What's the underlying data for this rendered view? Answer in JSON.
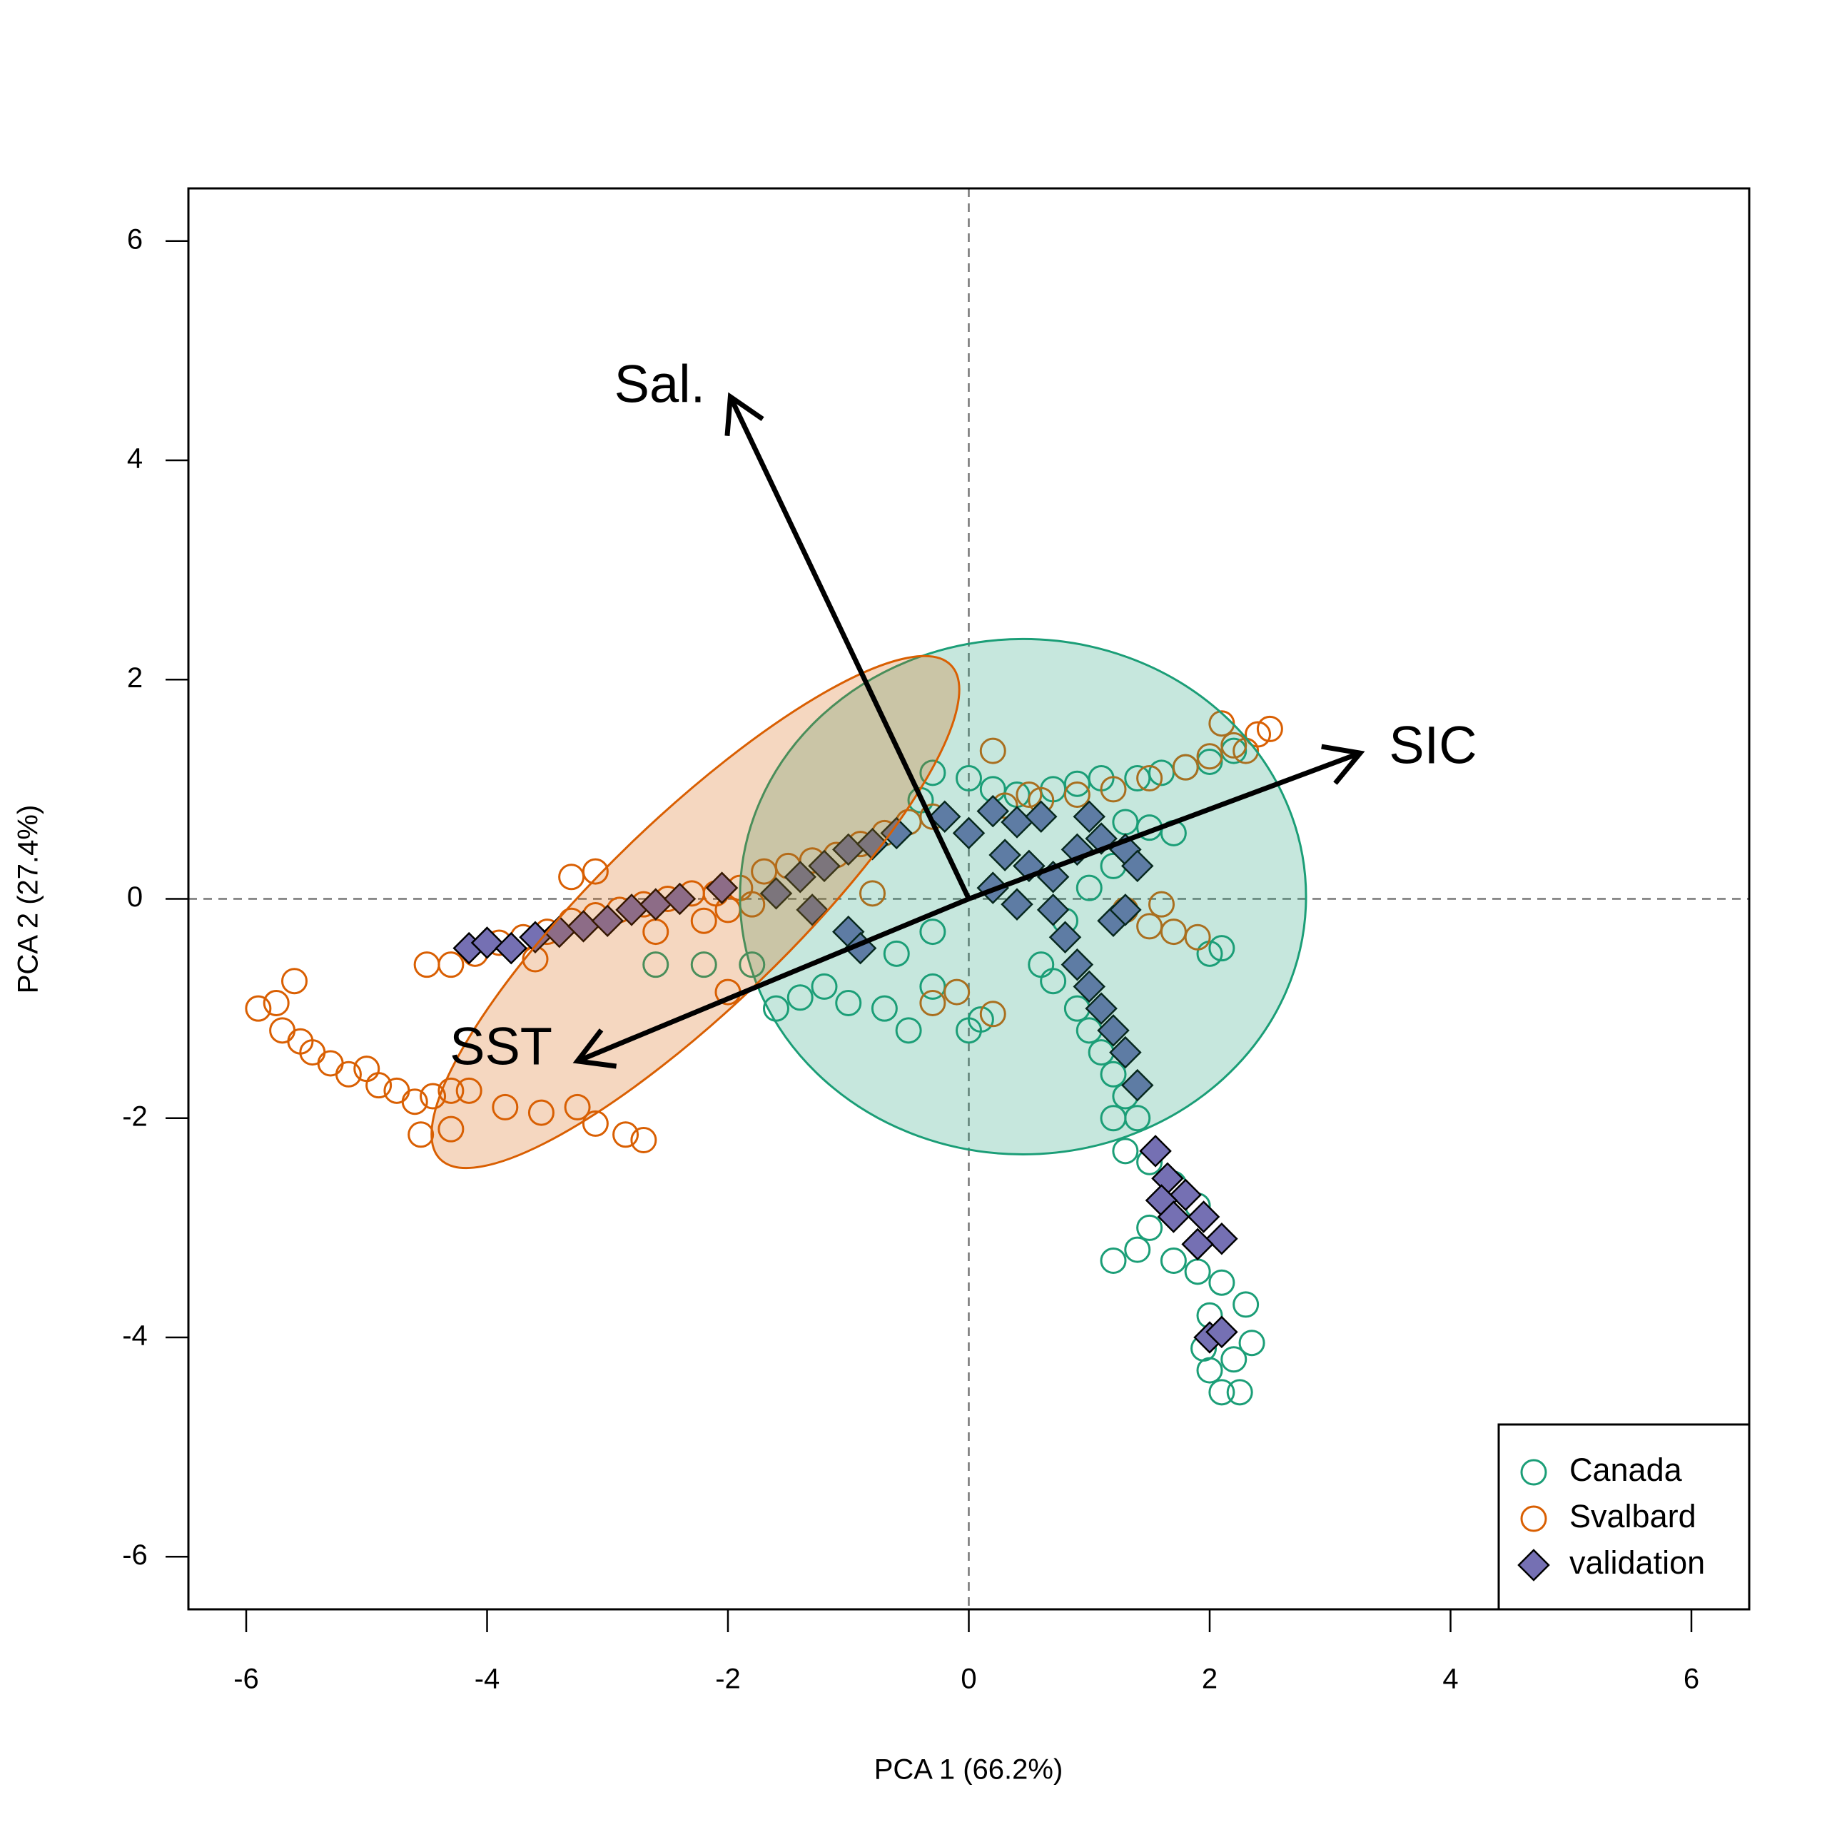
{
  "chart_data": {
    "type": "scatter",
    "xlabel": "PCA 1 (66.2%)",
    "ylabel": "PCA 2 (27.4%)",
    "xlim": [
      -6.48,
      6.48
    ],
    "ylim": [
      -6.48,
      6.48
    ],
    "xticks": [
      -6,
      -4,
      -2,
      0,
      2,
      4,
      6
    ],
    "yticks": [
      -6,
      -4,
      -2,
      0,
      2,
      4,
      6
    ],
    "zero_lines": true,
    "legend": "bottomright",
    "series": [
      {
        "name": "Canada",
        "color": "#1b9e77",
        "marker": "circle",
        "x": [
          0.0,
          0.2,
          0.4,
          0.7,
          0.9,
          1.1,
          1.4,
          1.6,
          1.8,
          2.0,
          2.2,
          -0.3,
          -0.4,
          -1.4,
          -1.2,
          -1.0,
          -0.7,
          -0.5,
          -0.3,
          0.0,
          0.1,
          -1.8,
          -1.6,
          -2.2,
          -2.6,
          -0.6,
          -0.3,
          1.3,
          1.5,
          1.7,
          1.2,
          1.0,
          0.8,
          2.1,
          2.0,
          0.6,
          0.7,
          0.9,
          1.0,
          1.1,
          1.2,
          1.3,
          1.4,
          1.2,
          1.3,
          1.5,
          1.7,
          1.9,
          1.5,
          1.4,
          1.2,
          1.7,
          1.9,
          2.1,
          2.3,
          2.0,
          1.95,
          2.0,
          2.2,
          2.1,
          2.25,
          2.35
        ],
        "y": [
          1.1,
          1.0,
          0.95,
          1.0,
          1.05,
          1.1,
          1.1,
          1.15,
          1.2,
          1.25,
          1.35,
          1.15,
          0.9,
          -0.9,
          -0.8,
          -0.95,
          -1.0,
          -1.2,
          -0.8,
          -1.2,
          -1.1,
          -0.6,
          -1.0,
          -0.6,
          -0.6,
          -0.5,
          -0.3,
          0.7,
          0.65,
          0.6,
          0.3,
          0.1,
          -0.2,
          -0.45,
          -0.5,
          -0.6,
          -0.75,
          -1.0,
          -1.2,
          -1.4,
          -1.6,
          -1.8,
          -2.0,
          -2.0,
          -2.3,
          -2.4,
          -2.6,
          -2.8,
          -3.0,
          -3.2,
          -3.3,
          -3.3,
          -3.4,
          -3.5,
          -3.7,
          -3.8,
          -4.1,
          -4.3,
          -4.2,
          -4.5,
          -4.5,
          -4.05
        ]
      },
      {
        "name": "Svalbard",
        "color": "#d95f02",
        "marker": "circle",
        "x": [
          -5.9,
          -5.75,
          -5.6,
          -5.7,
          -5.55,
          -5.45,
          -5.3,
          -5.15,
          -5.0,
          -4.9,
          -4.75,
          -4.6,
          -4.45,
          -4.3,
          -4.15,
          -4.55,
          -4.3,
          -3.85,
          -3.55,
          -3.25,
          -3.1,
          -2.85,
          -2.7,
          -4.5,
          -4.3,
          -4.1,
          -3.9,
          -3.7,
          -3.5,
          -3.3,
          -3.1,
          -2.9,
          -2.7,
          -2.5,
          -2.3,
          -2.1,
          -1.9,
          -1.7,
          -1.5,
          -1.3,
          -1.1,
          -0.9,
          -0.7,
          -0.5,
          -0.3,
          -3.3,
          -3.1,
          -2.6,
          -2.2,
          -2.0,
          -1.8,
          -3.6,
          -2.0,
          -0.3,
          -0.1,
          0.2,
          -0.8,
          0.2,
          0.5,
          0.3,
          0.6,
          0.9,
          1.2,
          1.5,
          1.8,
          2.0,
          2.2,
          2.4,
          2.5,
          2.1,
          2.3,
          1.3,
          1.5,
          1.7,
          1.9,
          1.6
        ],
        "y": [
          -1.0,
          -0.95,
          -0.75,
          -1.2,
          -1.3,
          -1.4,
          -1.5,
          -1.6,
          -1.55,
          -1.7,
          -1.75,
          -1.85,
          -1.8,
          -1.75,
          -1.75,
          -2.15,
          -2.1,
          -1.9,
          -1.95,
          -1.9,
          -2.05,
          -2.15,
          -2.2,
          -0.6,
          -0.6,
          -0.5,
          -0.4,
          -0.35,
          -0.3,
          -0.2,
          -0.15,
          -0.1,
          -0.05,
          0.0,
          0.05,
          0.05,
          0.1,
          0.25,
          0.3,
          0.35,
          0.4,
          0.5,
          0.6,
          0.7,
          0.75,
          0.2,
          0.25,
          -0.3,
          -0.2,
          -0.1,
          -0.05,
          -0.55,
          -0.85,
          -0.95,
          -0.85,
          -1.05,
          0.05,
          1.35,
          0.95,
          0.85,
          0.9,
          0.95,
          1.0,
          1.1,
          1.2,
          1.3,
          1.4,
          1.5,
          1.55,
          1.6,
          1.35,
          -0.1,
          -0.25,
          -0.3,
          -0.35,
          -0.05
        ]
      },
      {
        "name": "validation",
        "color": "#7570b3",
        "marker": "diamond",
        "x": [
          -4.15,
          -4.0,
          -3.8,
          -3.6,
          -3.4,
          -3.2,
          -3.0,
          -2.8,
          -2.6,
          -2.4,
          -2.05,
          -1.6,
          -1.4,
          -1.2,
          -1.0,
          -0.8,
          -0.6,
          -1.3,
          -1.0,
          -0.9,
          -0.2,
          0.0,
          0.2,
          0.4,
          0.6,
          0.3,
          0.5,
          0.2,
          0.4,
          0.7,
          1.0,
          1.1,
          1.3,
          1.4,
          0.9,
          0.7,
          0.8,
          0.9,
          1.0,
          1.1,
          1.2,
          1.3,
          1.2,
          1.3,
          1.4,
          1.55,
          1.65,
          1.8,
          1.6,
          1.7,
          1.95,
          2.1,
          1.9,
          2.0,
          2.1
        ],
        "y": [
          -0.45,
          -0.4,
          -0.45,
          -0.35,
          -0.3,
          -0.25,
          -0.2,
          -0.1,
          -0.05,
          0.0,
          0.1,
          0.05,
          0.2,
          0.3,
          0.45,
          0.5,
          0.6,
          -0.1,
          -0.3,
          -0.45,
          0.75,
          0.6,
          0.8,
          0.7,
          0.75,
          0.4,
          0.3,
          0.1,
          -0.05,
          0.2,
          0.75,
          0.55,
          0.45,
          0.3,
          0.45,
          -0.1,
          -0.35,
          -0.6,
          -0.8,
          -1.0,
          -0.2,
          -0.1,
          -1.2,
          -1.4,
          -1.7,
          -2.3,
          -2.55,
          -2.7,
          -2.75,
          -2.9,
          -2.9,
          -3.1,
          -3.15,
          -4.0,
          -3.95
        ]
      }
    ],
    "ellipses": [
      {
        "color": "#1b9e77",
        "cx": 0.45,
        "cy": 0.02,
        "rx": 2.35,
        "ry": 2.35,
        "angle": 0
      },
      {
        "color": "#d95f02",
        "cx": -2.27,
        "cy": -0.12,
        "rx": 2.95,
        "ry": 0.86,
        "angle": 44
      }
    ],
    "loadings": [
      {
        "label": "SIC",
        "x": 3.25,
        "y": 1.33
      },
      {
        "label": "Sal.",
        "x": -1.98,
        "y": 4.58
      },
      {
        "label": "SST",
        "x": -3.25,
        "y": -1.48
      }
    ]
  }
}
